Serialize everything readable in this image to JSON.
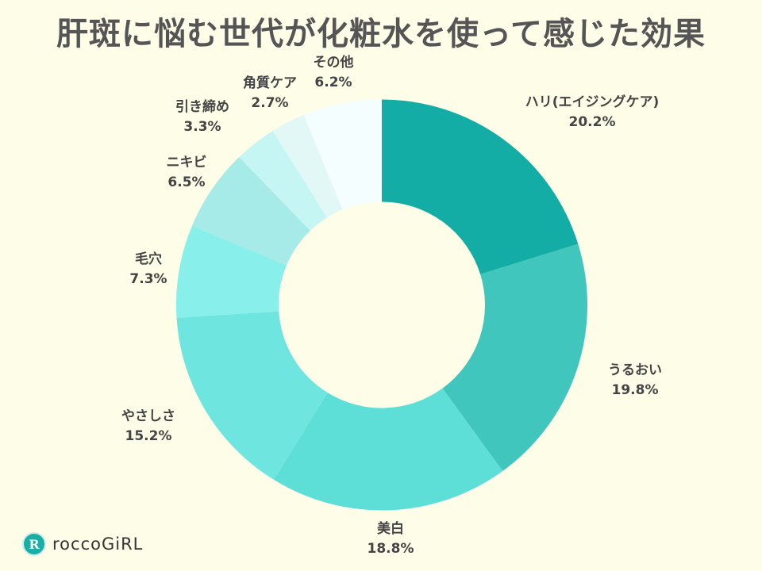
{
  "chart_data": {
    "type": "pie",
    "donut": true,
    "title": "肝斑に悩む世代が化粧水を使って感じた効果",
    "categories": [
      "ハリ(エイジングケア)",
      "うるおい",
      "美白",
      "やさしさ",
      "毛穴",
      "ニキビ",
      "引き締め",
      "角質ケア",
      "その他"
    ],
    "values": [
      20.2,
      19.8,
      18.8,
      15.2,
      7.3,
      6.5,
      3.3,
      2.7,
      6.2
    ],
    "value_labels": [
      "20.2%",
      "19.8%",
      "18.8%",
      "15.2%",
      "7.3%",
      "6.5%",
      "3.3%",
      "2.7%",
      "6.2%"
    ],
    "colors": [
      "#14ada5",
      "#40c6bd",
      "#5ddfd8",
      "#6ee6df",
      "#88efea",
      "#a6ebe7",
      "#c6f6f3",
      "#e2f8f7",
      "#f5feff"
    ],
    "start": "top, clockwise"
  },
  "background": "#fdfde8",
  "logo": {
    "mark": "R",
    "text": "roccoGiRL"
  }
}
